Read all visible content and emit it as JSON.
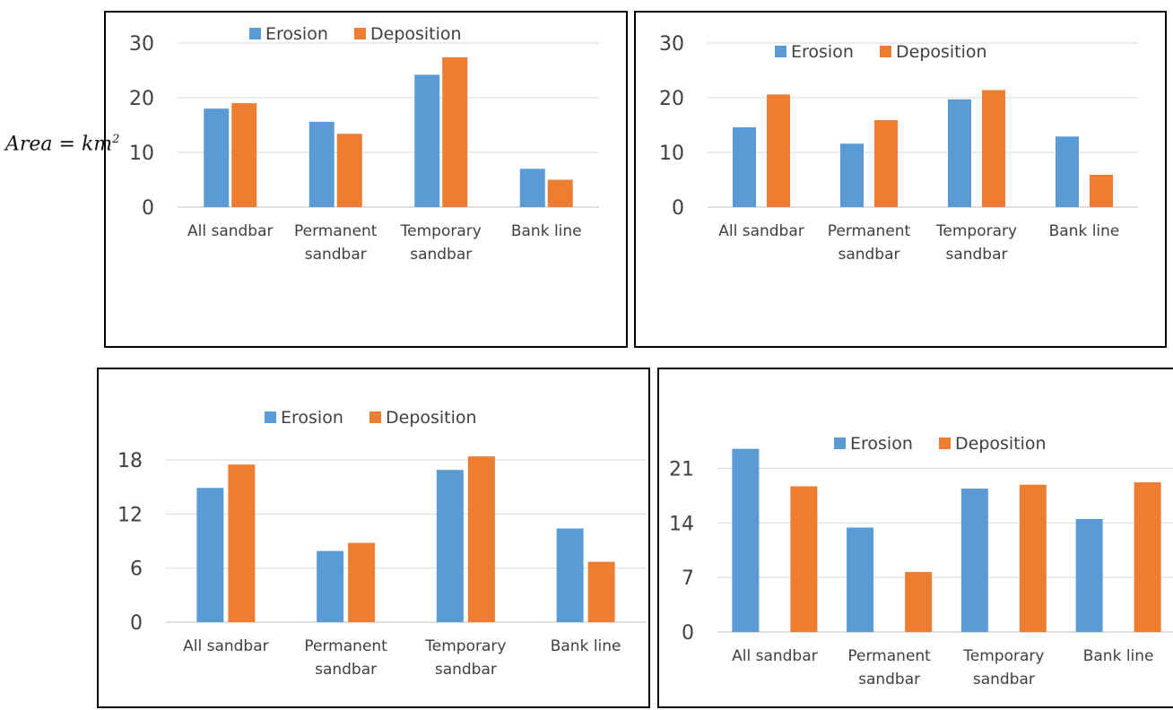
{
  "colors": {
    "erosion": "#5b9bd5",
    "deposition": "#ed7d31",
    "grid": "#d9d9d9",
    "axis": "#bfbfbf",
    "text": "#404040"
  },
  "side_label": {
    "prefix": "Area = km",
    "sup": "2"
  },
  "chart_data": [
    {
      "type": "bar",
      "categories": [
        [
          "All sandbar"
        ],
        [
          "Permanent",
          "sandbar"
        ],
        [
          "Temporary",
          "sandbar"
        ],
        [
          "Bank line"
        ]
      ],
      "series": [
        {
          "name": "Erosion",
          "values": [
            18,
            15.6,
            24.2,
            7
          ]
        },
        {
          "name": "Deposition",
          "values": [
            19,
            13.4,
            27.4,
            5
          ]
        }
      ],
      "yticks": [
        0,
        10,
        20,
        30
      ],
      "ylim": [
        0,
        30
      ],
      "legend": "top-center"
    },
    {
      "type": "bar",
      "categories": [
        [
          "All sandbar"
        ],
        [
          "Permanent",
          "sandbar"
        ],
        [
          "Temporary",
          "sandbar"
        ],
        [
          "Bank line"
        ]
      ],
      "series": [
        {
          "name": "Erosion",
          "values": [
            14.6,
            11.6,
            19.7,
            12.9
          ]
        },
        {
          "name": "Deposition",
          "values": [
            20.6,
            15.9,
            21.4,
            5.9
          ]
        }
      ],
      "yticks": [
        0,
        10,
        20,
        30
      ],
      "ylim": [
        0,
        30
      ],
      "legend": "top-center"
    },
    {
      "type": "bar",
      "categories": [
        [
          "All sandbar"
        ],
        [
          "Permanent",
          "sandbar"
        ],
        [
          "Temporary",
          "sandbar"
        ],
        [
          "Bank line"
        ]
      ],
      "series": [
        {
          "name": "Erosion",
          "values": [
            14.9,
            7.9,
            16.9,
            10.4
          ]
        },
        {
          "name": "Deposition",
          "values": [
            17.5,
            8.8,
            18.4,
            6.7
          ]
        }
      ],
      "yticks": [
        0,
        6,
        12,
        18
      ],
      "ylim": [
        0,
        21
      ],
      "legend": "top-center"
    },
    {
      "type": "bar",
      "categories": [
        [
          "All sandbar"
        ],
        [
          "Permanent",
          "sandbar"
        ],
        [
          "Temporary",
          "sandbar"
        ],
        [
          "Bank line"
        ]
      ],
      "series": [
        {
          "name": "Erosion",
          "values": [
            23.5,
            13.4,
            18.4,
            14.5
          ]
        },
        {
          "name": "Deposition",
          "values": [
            18.7,
            7.7,
            18.9,
            19.2
          ]
        }
      ],
      "yticks": [
        0,
        7,
        14,
        21
      ],
      "ylim": [
        0,
        24.5
      ],
      "legend": "top-center"
    }
  ]
}
